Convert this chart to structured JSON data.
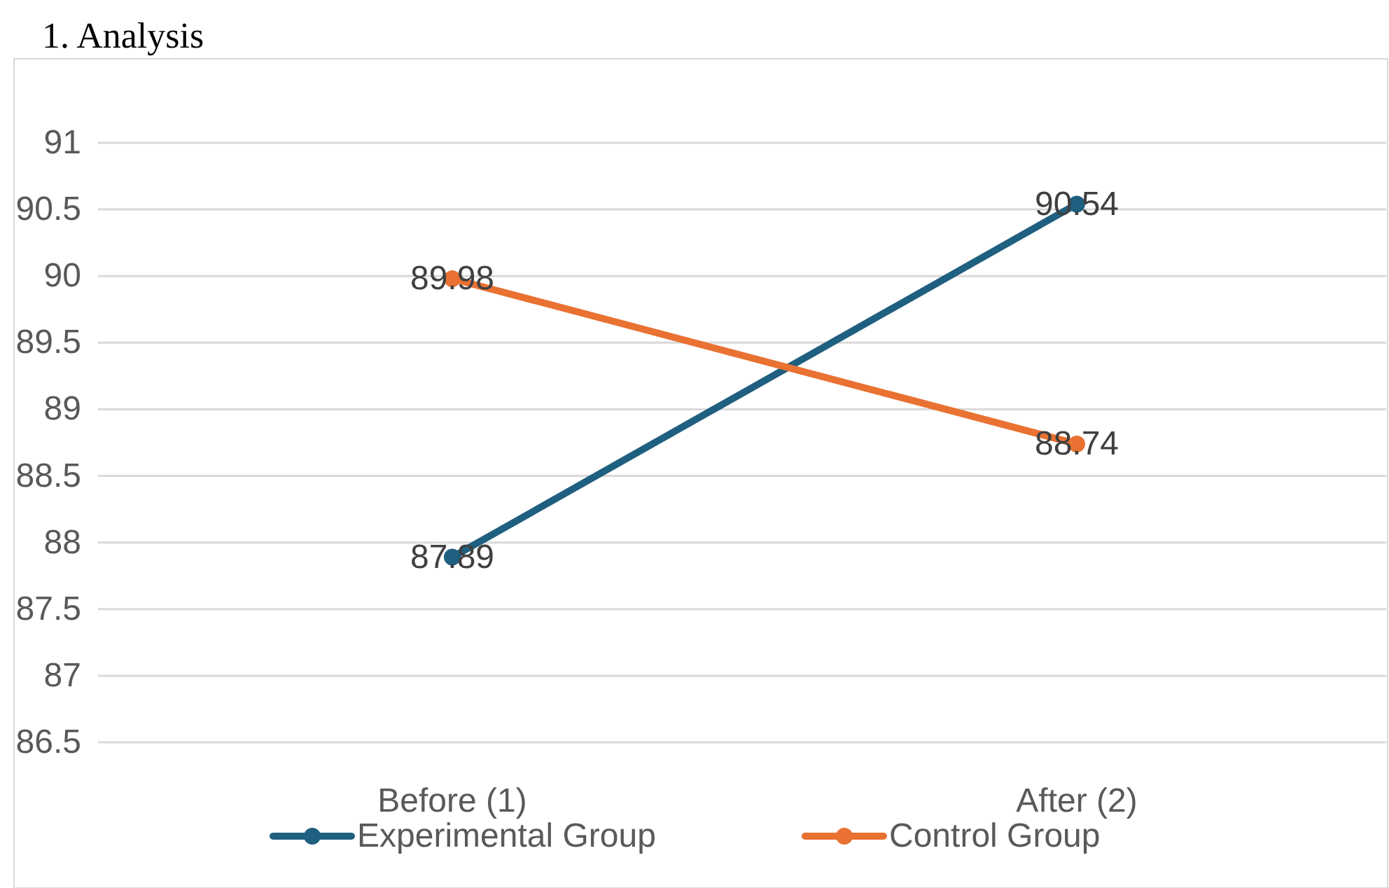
{
  "chart_data": {
    "type": "line",
    "title": "1.   Analysis",
    "categories": [
      "Before (1)",
      "After (2)"
    ],
    "series": [
      {
        "name": "Experimental Group",
        "color": "#1f5f7f",
        "values": [
          87.89,
          90.54
        ]
      },
      {
        "name": "Control Group",
        "color": "#e97132",
        "values": [
          89.98,
          88.74
        ]
      }
    ],
    "ylim": [
      86.5,
      91
    ],
    "yticks": [
      86.5,
      87,
      87.5,
      88,
      88.5,
      89,
      89.5,
      90,
      90.5,
      91
    ],
    "grid": "y",
    "legend": "bottom",
    "marker": "circle",
    "data_labels": true
  }
}
